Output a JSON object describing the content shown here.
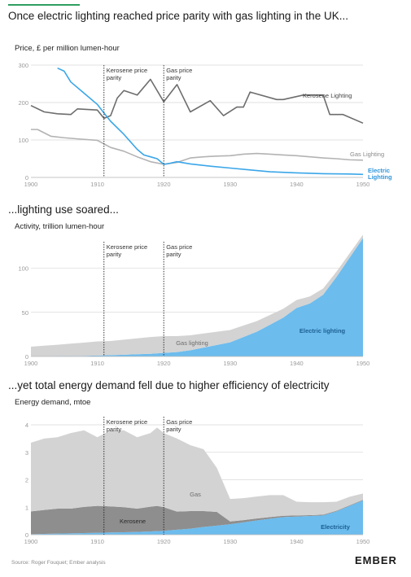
{
  "headline": "Once electric lighting reached price parity with gas lighting in the UK...",
  "colors": {
    "accent": "#2f9e5f",
    "electric": "#3aa6e8",
    "gas_line": "#b3b3b3",
    "kerosene_line": "#6d6d6d",
    "electricity_area": "#6cbcee",
    "gas_area": "#d3d3d3",
    "kerosene_area": "#8e8e8e",
    "grid": "#d9d9d9",
    "axis_text": "#9a9a9a"
  },
  "footer": {
    "source": "Source: Roger Fouquet; Ember analysis",
    "logo": "EMBER"
  },
  "chart_data": [
    {
      "type": "line",
      "title": "Once electric lighting reached price parity with gas lighting in the UK...",
      "ylabel": "Price, £ per million lumen-hour",
      "xlim": [
        1900,
        1950
      ],
      "ylim": [
        0,
        300
      ],
      "xticks": [
        "1900",
        "1910",
        "1920",
        "1930",
        "1940",
        "1950"
      ],
      "yticks": [
        "0",
        "100",
        "200",
        "300"
      ],
      "annotations": [
        {
          "x": 1911,
          "label": [
            "Kerosene price",
            "parity"
          ]
        },
        {
          "x": 1920,
          "label": [
            "Gas price",
            "parity"
          ]
        }
      ],
      "series": [
        {
          "name": "Kerosene Lighting",
          "label_lines": [
            "Kerosene Lighting"
          ],
          "x": [
            1900,
            1902,
            1904,
            1906,
            1907,
            1910,
            1911,
            1912,
            1913,
            1914,
            1916,
            1918,
            1920,
            1922,
            1924,
            1927,
            1929,
            1931,
            1932,
            1933,
            1937,
            1938,
            1941,
            1944,
            1945,
            1947,
            1950
          ],
          "y": [
            192,
            175,
            170,
            168,
            183,
            180,
            158,
            165,
            212,
            232,
            220,
            262,
            202,
            248,
            175,
            205,
            165,
            188,
            188,
            228,
            208,
            208,
            220,
            220,
            168,
            168,
            145
          ]
        },
        {
          "name": "Gas Lighting",
          "label_lines": [
            "Gas Lighting"
          ],
          "x": [
            1900,
            1901,
            1903,
            1905,
            1907,
            1910,
            1912,
            1914,
            1916,
            1918,
            1920,
            1922,
            1924,
            1926,
            1928,
            1930,
            1932,
            1934,
            1936,
            1938,
            1940,
            1942,
            1944,
            1946,
            1948,
            1950
          ],
          "y": [
            128,
            128,
            110,
            106,
            103,
            99,
            80,
            70,
            55,
            42,
            35,
            40,
            52,
            55,
            57,
            58,
            62,
            64,
            62,
            60,
            58,
            55,
            52,
            50,
            47,
            46
          ]
        },
        {
          "name": "Electric Lighting",
          "label_lines": [
            "Electric",
            "Lighting"
          ],
          "x": [
            1904,
            1905,
            1906,
            1908,
            1910,
            1911,
            1912,
            1914,
            1915,
            1916,
            1917,
            1918,
            1919,
            1920,
            1921,
            1922,
            1924,
            1927,
            1930,
            1933,
            1936,
            1940,
            1944,
            1948,
            1950
          ],
          "y": [
            292,
            284,
            255,
            225,
            195,
            172,
            150,
            115,
            95,
            75,
            60,
            55,
            50,
            35,
            38,
            42,
            36,
            30,
            25,
            20,
            15,
            12,
            10,
            9,
            8
          ]
        }
      ]
    },
    {
      "type": "area",
      "title": "...lighting use soared...",
      "ylabel": "Activity, trillion lumen-hour",
      "xlim": [
        1900,
        1950
      ],
      "ylim": [
        0,
        130
      ],
      "xticks": [
        "1900",
        "1910",
        "1920",
        "1930",
        "1940",
        "1950"
      ],
      "yticks": [
        "0",
        "50",
        "100"
      ],
      "annotations": [
        {
          "x": 1911,
          "label": [
            "Kerosene price",
            "parity"
          ]
        },
        {
          "x": 1920,
          "label": [
            "Gas price",
            "parity"
          ]
        }
      ],
      "stacked": true,
      "x": [
        1900,
        1902,
        1904,
        1906,
        1908,
        1910,
        1912,
        1914,
        1916,
        1918,
        1920,
        1922,
        1924,
        1926,
        1928,
        1930,
        1932,
        1934,
        1936,
        1938,
        1940,
        1942,
        1944,
        1946,
        1948,
        1950
      ],
      "series": [
        {
          "name": "Electric lighting",
          "label_lines": [
            "Electric lighting"
          ],
          "values": [
            0.1,
            0.2,
            0.3,
            0.5,
            0.7,
            1,
            1.5,
            2,
            2.5,
            3,
            4,
            5,
            7,
            10,
            13,
            16,
            22,
            28,
            36,
            44,
            55,
            60,
            70,
            90,
            112,
            134
          ]
        },
        {
          "name": "Gas lighting",
          "label_lines": [
            "Gas lighting"
          ],
          "values": [
            11,
            12,
            13,
            14,
            15,
            16,
            16,
            17,
            18,
            19,
            19,
            18,
            17,
            16,
            15,
            14,
            13,
            12,
            11,
            10,
            9,
            8,
            7,
            6,
            5,
            4
          ]
        }
      ]
    },
    {
      "type": "area",
      "title": "...yet total energy demand fell due to higher efficiency of electricity",
      "ylabel": "Energy demand, mtoe",
      "xlim": [
        1900,
        1950
      ],
      "ylim": [
        0,
        4
      ],
      "xticks": [
        "1900",
        "1910",
        "1920",
        "1930",
        "1940",
        "1950"
      ],
      "yticks": [
        "0",
        "1",
        "2",
        "3",
        "4"
      ],
      "annotations": [
        {
          "x": 1911,
          "label": [
            "Kerosene price",
            "parity"
          ]
        },
        {
          "x": 1920,
          "label": [
            "Gas price",
            "parity"
          ]
        }
      ],
      "stacked": true,
      "x": [
        1900,
        1902,
        1904,
        1906,
        1908,
        1910,
        1912,
        1914,
        1916,
        1918,
        1919,
        1920,
        1922,
        1924,
        1926,
        1928,
        1930,
        1932,
        1934,
        1936,
        1938,
        1940,
        1942,
        1944,
        1946,
        1948,
        1950
      ],
      "series": [
        {
          "name": "Electricity",
          "label_lines": [
            "Electricity"
          ],
          "values": [
            0.02,
            0.03,
            0.04,
            0.05,
            0.06,
            0.07,
            0.08,
            0.09,
            0.1,
            0.12,
            0.13,
            0.14,
            0.18,
            0.22,
            0.28,
            0.33,
            0.38,
            0.45,
            0.52,
            0.58,
            0.64,
            0.66,
            0.68,
            0.7,
            0.85,
            1.05,
            1.25
          ]
        },
        {
          "name": "Kerosene",
          "label_lines": [
            "Kerosene"
          ],
          "values": [
            0.83,
            0.87,
            0.91,
            0.9,
            0.95,
            0.98,
            0.95,
            0.91,
            0.85,
            0.9,
            0.92,
            0.86,
            0.66,
            0.64,
            0.58,
            0.5,
            0.1,
            0.08,
            0.07,
            0.06,
            0.05,
            0.04,
            0.03,
            0.03,
            0.02,
            0.02,
            0.02
          ]
        },
        {
          "name": "Gas",
          "label_lines": [
            "Gas"
          ],
          "values": [
            2.5,
            2.6,
            2.6,
            2.75,
            2.79,
            2.5,
            2.77,
            2.8,
            2.6,
            2.68,
            2.85,
            2.7,
            2.66,
            2.4,
            2.25,
            1.6,
            0.82,
            0.8,
            0.8,
            0.8,
            0.75,
            0.5,
            0.47,
            0.45,
            0.33,
            0.31,
            0.23
          ]
        }
      ]
    }
  ]
}
